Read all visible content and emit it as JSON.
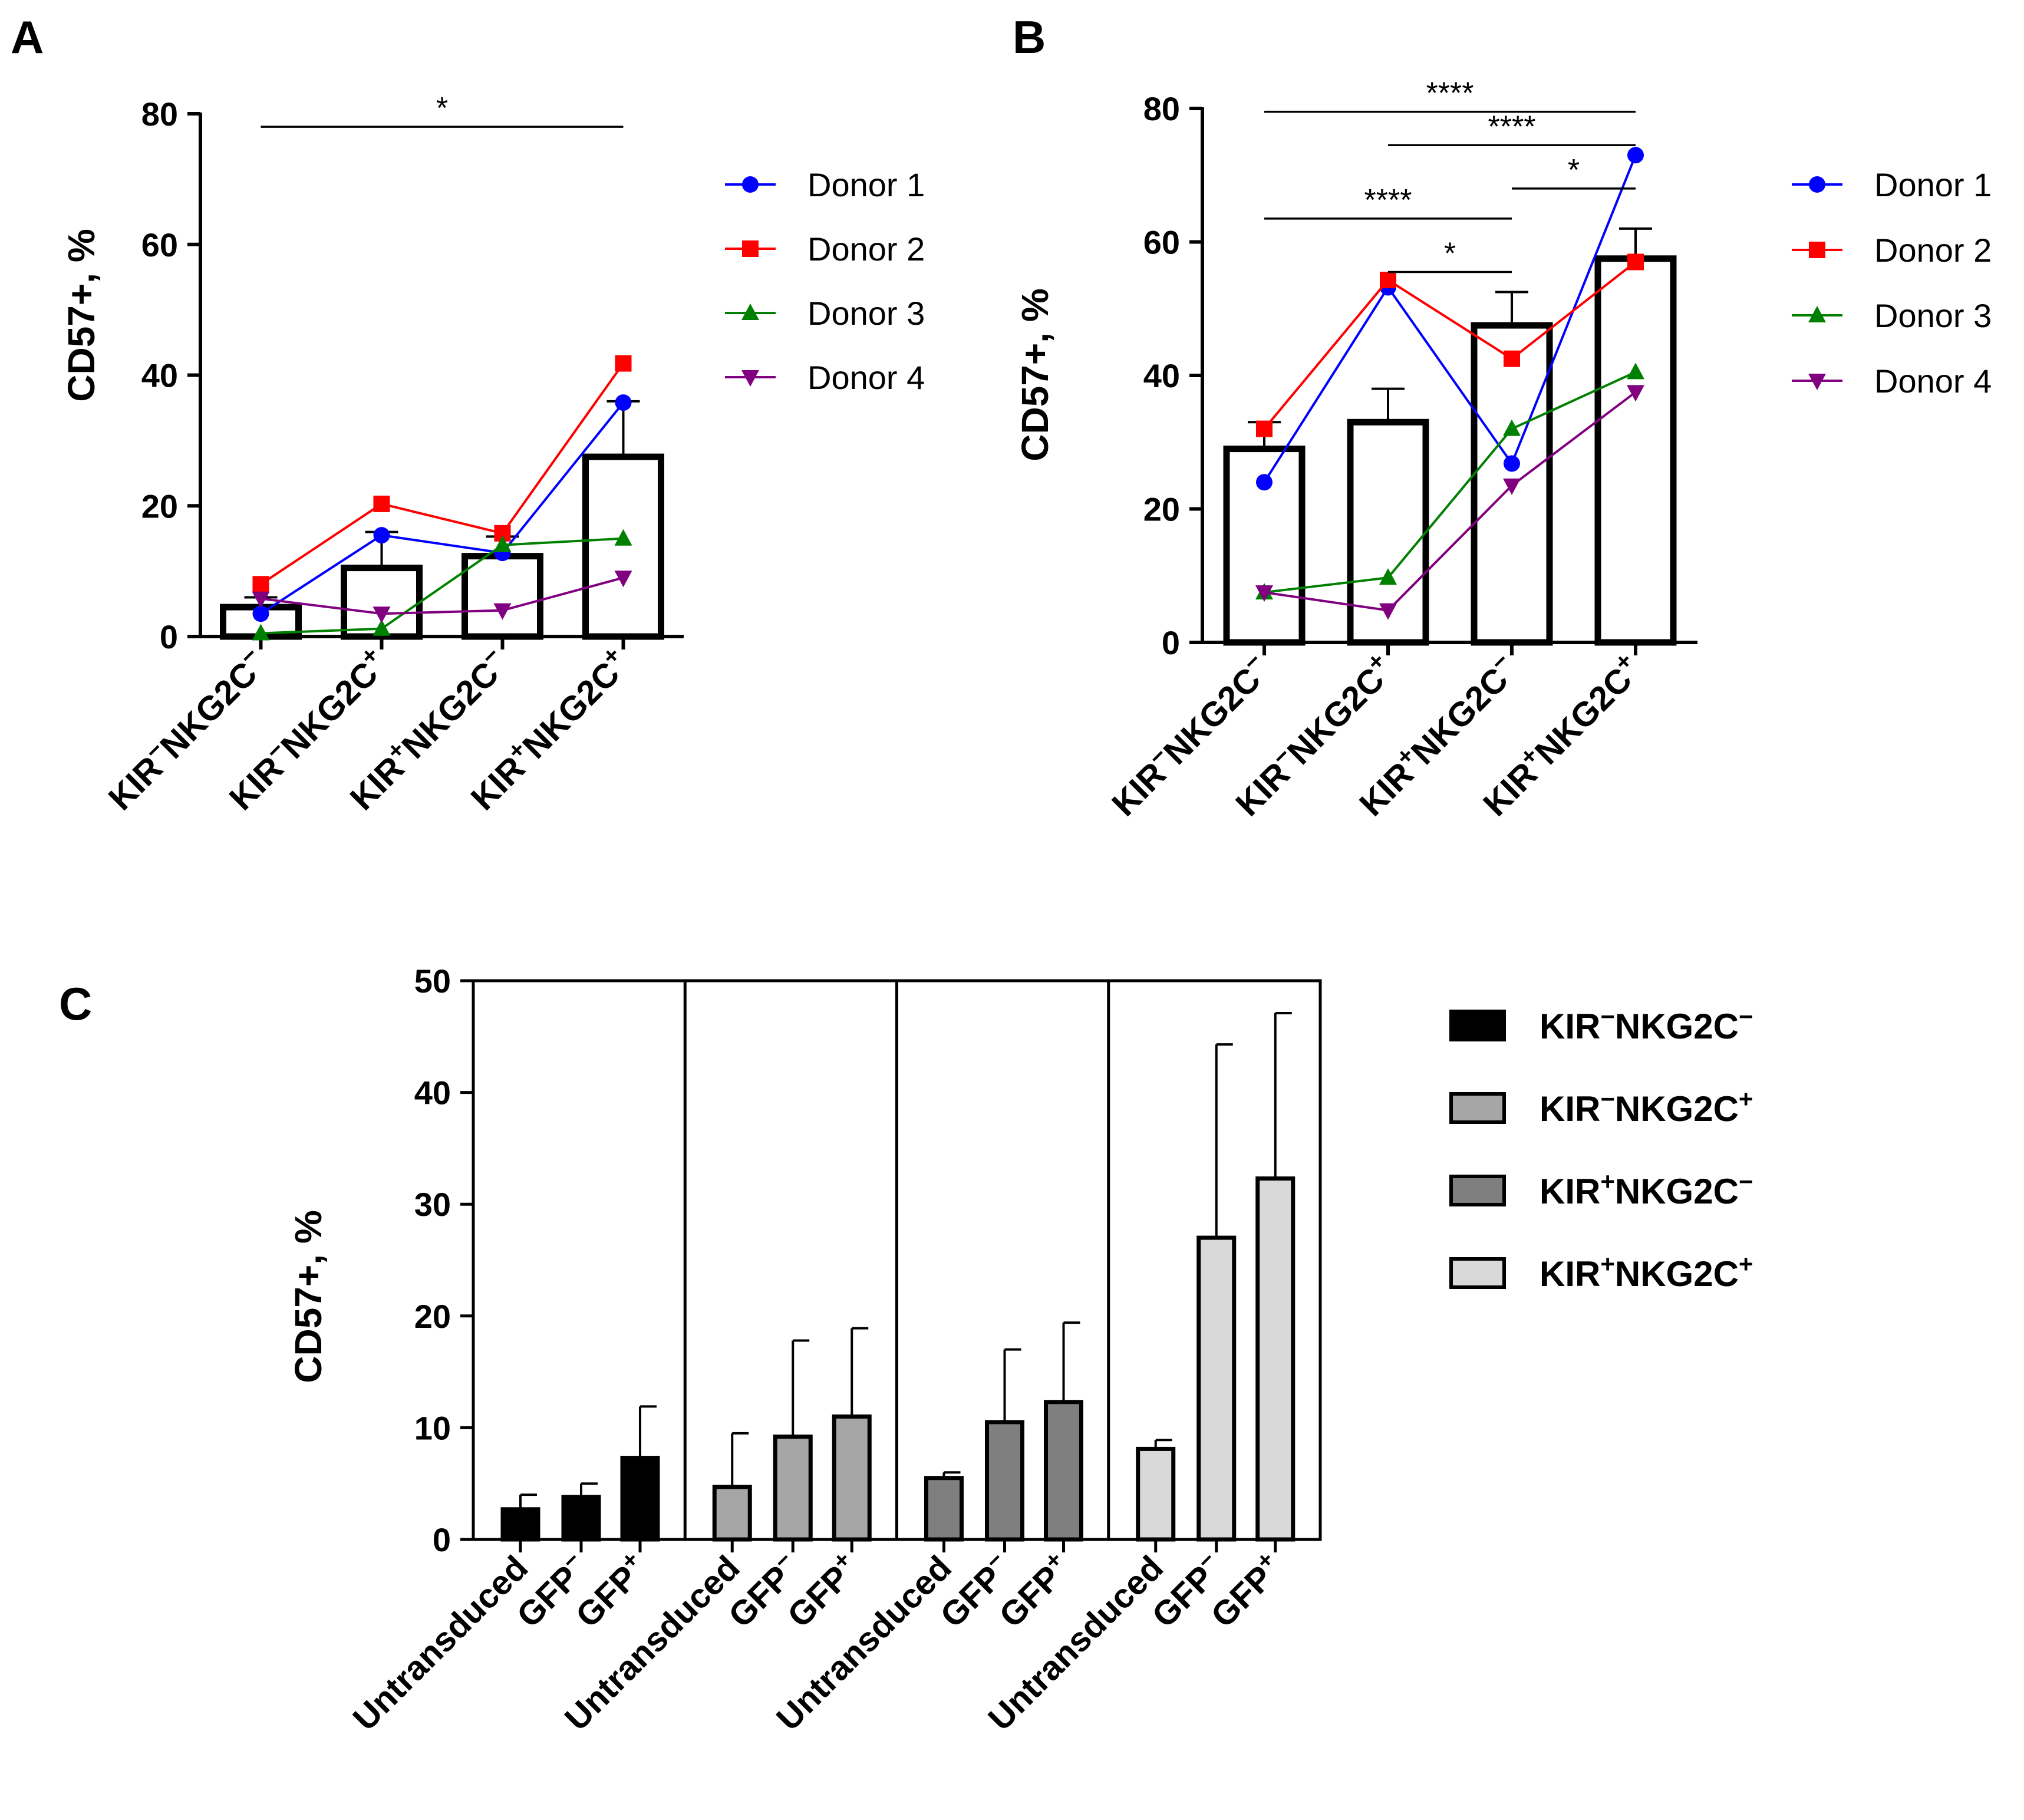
{
  "chart_data": [
    {
      "panel_label": "A",
      "type": "bar",
      "overlay": "line",
      "categories": [
        {
          "base": "KIR",
          "kir_sup": "−",
          "mid": "NKG2C",
          "nkg_sup": "−"
        },
        {
          "base": "KIR",
          "kir_sup": "−",
          "mid": "NKG2C",
          "nkg_sup": "+"
        },
        {
          "base": "KIR",
          "kir_sup": "+",
          "mid": "NKG2C",
          "nkg_sup": "−"
        },
        {
          "base": "KIR",
          "kir_sup": "+",
          "mid": "NKG2C",
          "nkg_sup": "+"
        }
      ],
      "means": [
        4.5,
        10.5,
        12.3,
        27.5
      ],
      "errors": [
        1.5,
        5.5,
        3.0,
        8.5
      ],
      "ylabel": "CD57+, %",
      "ylim": [
        0,
        80
      ],
      "yticks": [
        0,
        20,
        40,
        60,
        80
      ],
      "series": [
        {
          "name": "Donor 1",
          "color": "#0000ff",
          "marker": "circle",
          "values": [
            3.5,
            15.5,
            12.8,
            35.8
          ]
        },
        {
          "name": "Donor 2",
          "color": "#ff0000",
          "marker": "square",
          "values": [
            8.0,
            20.3,
            15.8,
            41.8
          ]
        },
        {
          "name": "Donor 3",
          "color": "#008000",
          "marker": "triangle-up",
          "values": [
            0.5,
            1.2,
            14.0,
            15.0
          ]
        },
        {
          "name": "Donor 4",
          "color": "#800080",
          "marker": "triangle-down",
          "values": [
            5.8,
            3.5,
            4.0,
            9.0
          ]
        }
      ],
      "significance": [
        {
          "from": 0,
          "to": 3,
          "label": "*",
          "y": 78
        }
      ],
      "legend_position": "right"
    },
    {
      "panel_label": "B",
      "type": "bar",
      "overlay": "line",
      "categories": [
        {
          "base": "KIR",
          "kir_sup": "−",
          "mid": "NKG2C",
          "nkg_sup": "−"
        },
        {
          "base": "KIR",
          "kir_sup": "−",
          "mid": "NKG2C",
          "nkg_sup": "+"
        },
        {
          "base": "KIR",
          "kir_sup": "+",
          "mid": "NKG2C",
          "nkg_sup": "−"
        },
        {
          "base": "KIR",
          "kir_sup": "+",
          "mid": "NKG2C",
          "nkg_sup": "+"
        }
      ],
      "means": [
        29.0,
        33.0,
        47.5,
        57.5
      ],
      "errors": [
        4.0,
        5.0,
        5.0,
        4.5
      ],
      "ylabel": "CD57+, %",
      "ylim": [
        0,
        80
      ],
      "yticks": [
        0,
        20,
        40,
        60,
        80
      ],
      "series": [
        {
          "name": "Donor 1",
          "color": "#0000ff",
          "marker": "circle",
          "values": [
            24.0,
            53.2,
            26.8,
            73.0
          ]
        },
        {
          "name": "Donor 2",
          "color": "#ff0000",
          "marker": "square",
          "values": [
            32.0,
            54.3,
            42.5,
            57.0
          ]
        },
        {
          "name": "Donor 3",
          "color": "#008000",
          "marker": "triangle-up",
          "values": [
            7.5,
            9.7,
            32.0,
            40.5
          ]
        },
        {
          "name": "Donor 4",
          "color": "#800080",
          "marker": "triangle-down",
          "values": [
            7.5,
            4.8,
            23.5,
            37.5
          ]
        }
      ],
      "significance": [
        {
          "from": 0,
          "to": 3,
          "label": "****",
          "y": 79.5
        },
        {
          "from": 1,
          "to": 3,
          "label": "****",
          "y": 74.5
        },
        {
          "from": 2,
          "to": 3,
          "label": "*",
          "y": 68.0
        },
        {
          "from": 0,
          "to": 2,
          "label": "****",
          "y": 63.5
        },
        {
          "from": 1,
          "to": 2,
          "label": "*",
          "y": 55.5
        }
      ],
      "legend_position": "right"
    },
    {
      "panel_label": "C",
      "type": "bar",
      "ylabel": "CD57+, %",
      "ylim": [
        0,
        50
      ],
      "yticks": [
        0,
        10,
        20,
        30,
        40,
        50
      ],
      "groups": [
        {
          "name": "KIR−NKG2C−",
          "legend": {
            "base": "KIR",
            "kir_sup": "−",
            "mid": "NKG2C",
            "nkg_sup": "−"
          },
          "color": "#000000",
          "bars": [
            {
              "label": "Untransduced",
              "sup": "",
              "value": 2.7,
              "error": 1.3
            },
            {
              "label": "GFP",
              "sup": "−",
              "value": 3.8,
              "error": 1.2
            },
            {
              "label": "GFP",
              "sup": "+",
              "value": 7.3,
              "error": 4.6
            }
          ]
        },
        {
          "name": "KIR−NKG2C+",
          "legend": {
            "base": "KIR",
            "kir_sup": "−",
            "mid": "NKG2C",
            "nkg_sup": "+"
          },
          "color": "#a6a6a6",
          "bars": [
            {
              "label": "Untransduced",
              "sup": "",
              "value": 4.7,
              "error": 4.8
            },
            {
              "label": "GFP",
              "sup": "−",
              "value": 9.2,
              "error": 8.6
            },
            {
              "label": "GFP",
              "sup": "+",
              "value": 11.0,
              "error": 7.9
            }
          ]
        },
        {
          "name": "KIR+NKG2C−",
          "legend": {
            "base": "KIR",
            "kir_sup": "+",
            "mid": "NKG2C",
            "nkg_sup": "−"
          },
          "color": "#7f7f7f",
          "bars": [
            {
              "label": "Untransduced",
              "sup": "",
              "value": 5.5,
              "error": 0.5
            },
            {
              "label": "GFP",
              "sup": "−",
              "value": 10.5,
              "error": 6.5
            },
            {
              "label": "GFP",
              "sup": "+",
              "value": 12.3,
              "error": 7.1
            }
          ]
        },
        {
          "name": "KIR+NKG2C+",
          "legend": {
            "base": "KIR",
            "kir_sup": "+",
            "mid": "NKG2C",
            "nkg_sup": "+"
          },
          "color": "#d9d9d9",
          "bars": [
            {
              "label": "Untransduced",
              "sup": "",
              "value": 8.1,
              "error": 0.8
            },
            {
              "label": "GFP",
              "sup": "−",
              "value": 27.0,
              "error": 17.3
            },
            {
              "label": "GFP",
              "sup": "+",
              "value": 32.3,
              "error": 14.8
            }
          ]
        }
      ],
      "legend_position": "right"
    }
  ]
}
